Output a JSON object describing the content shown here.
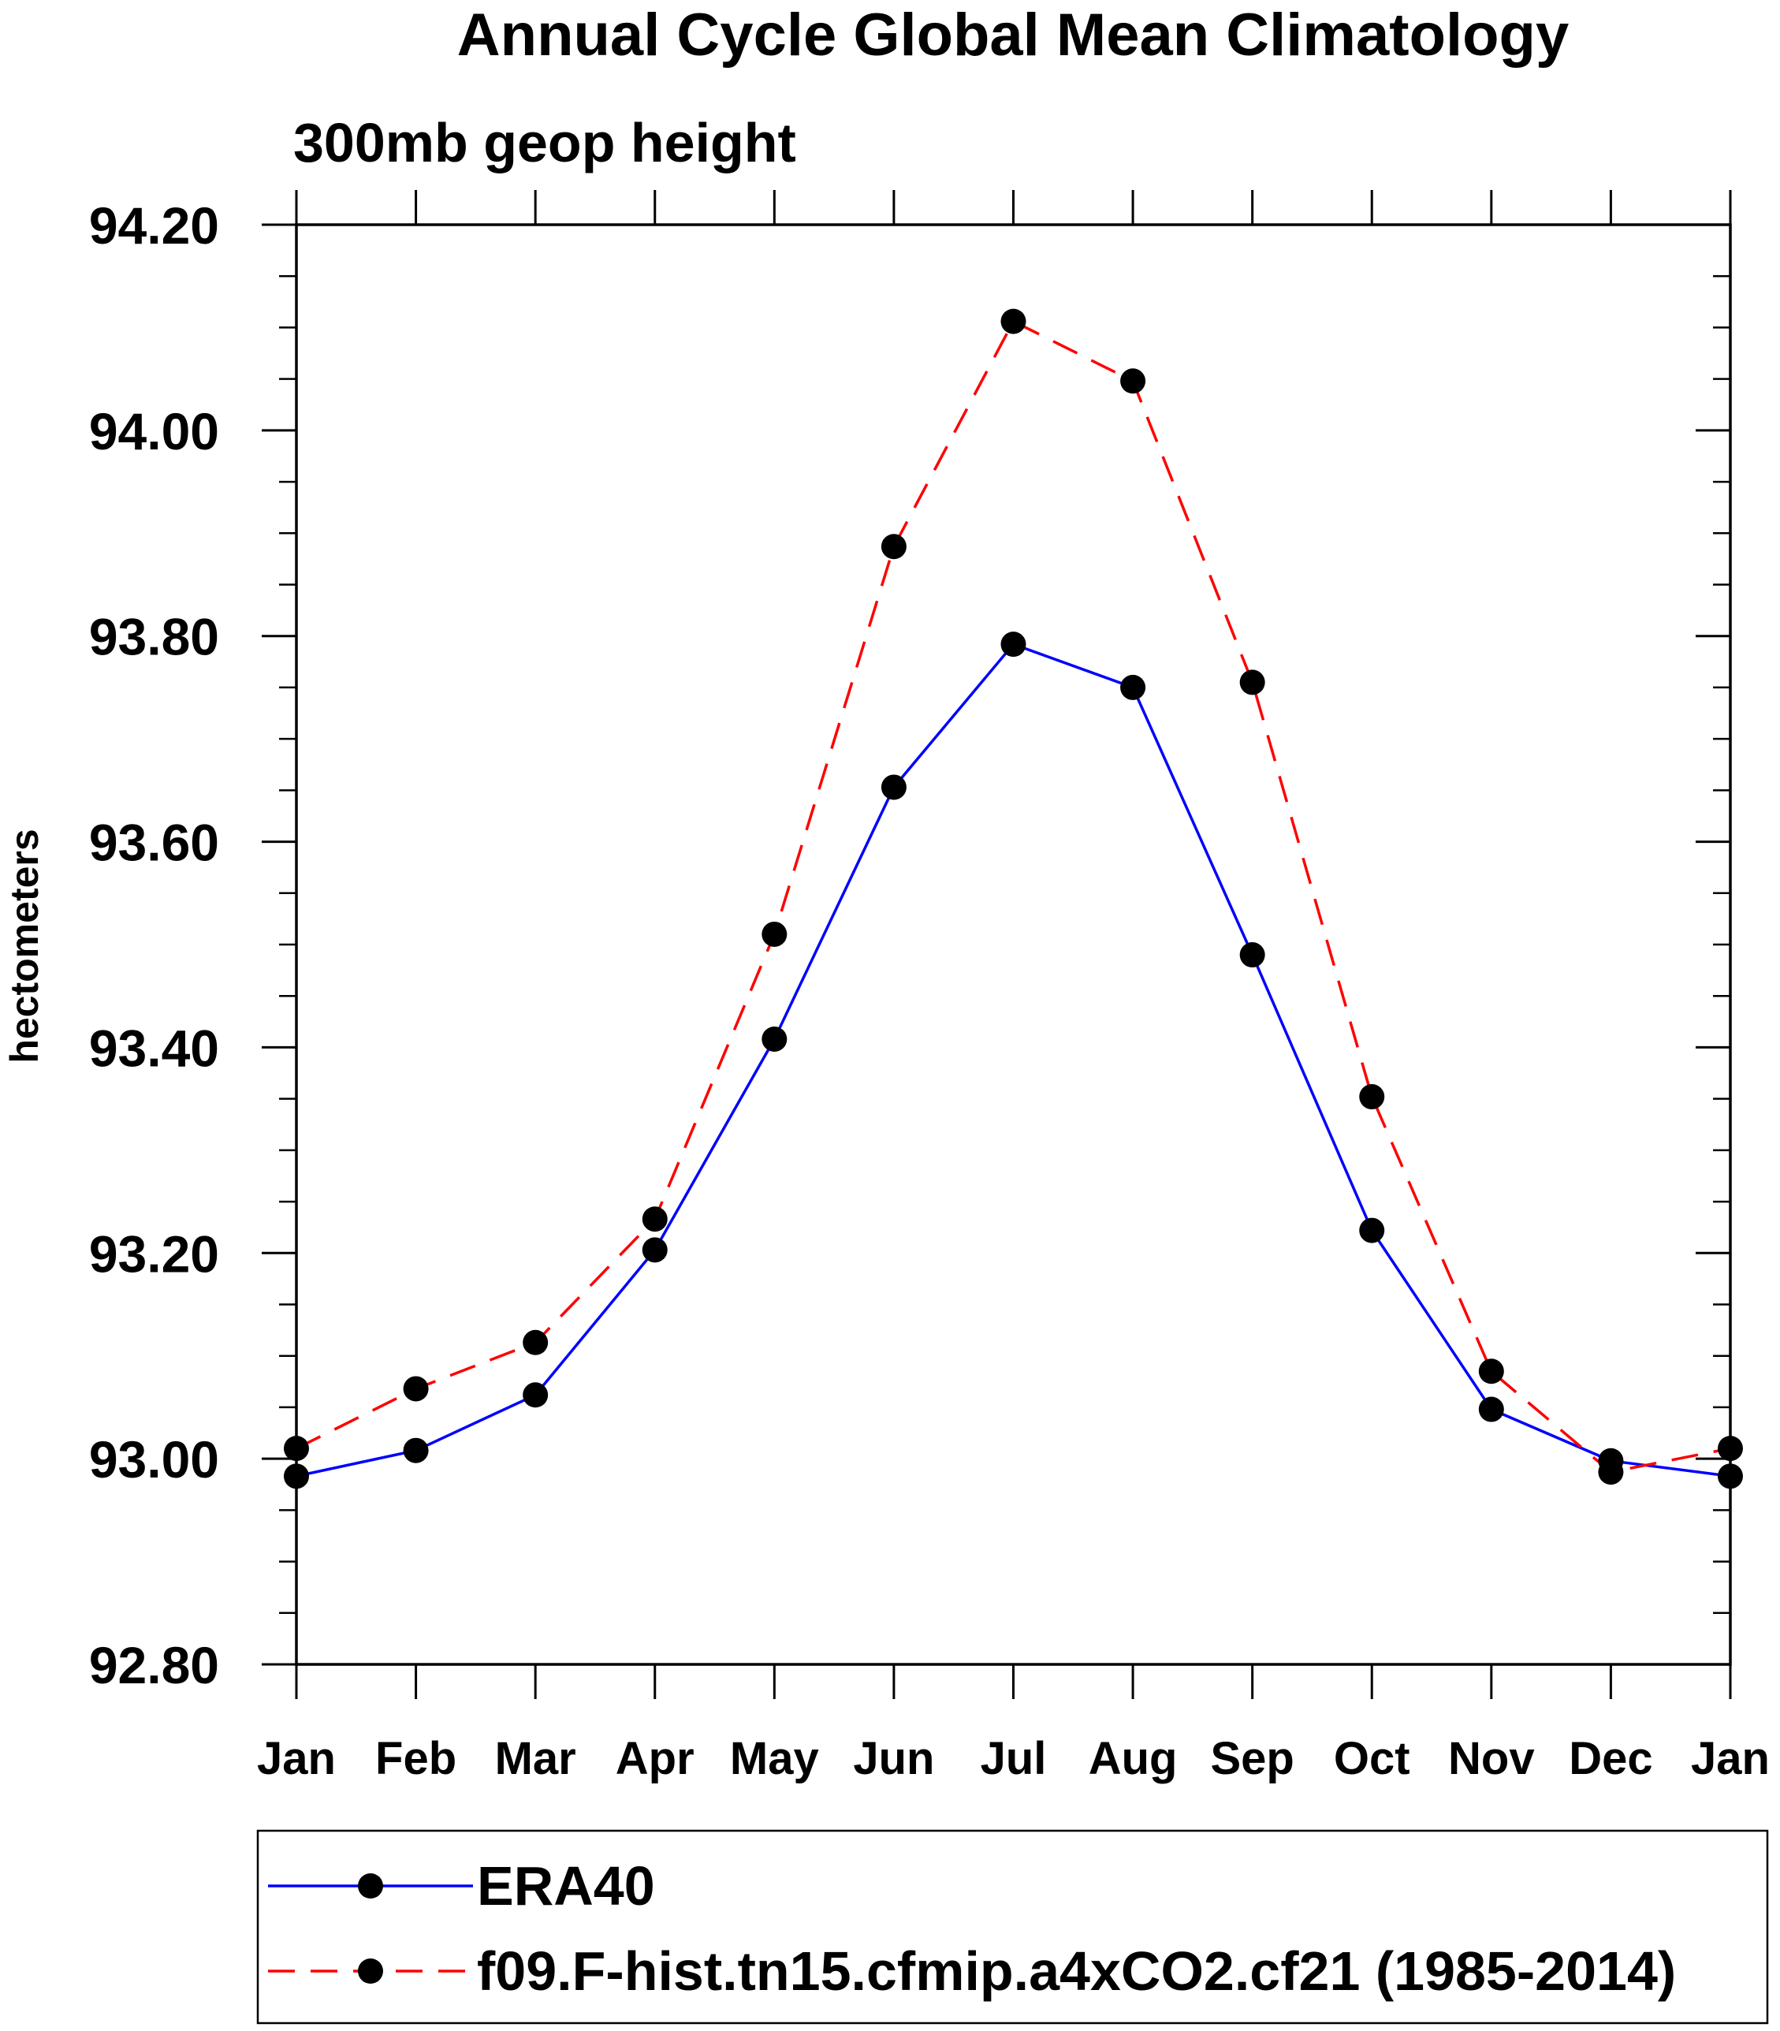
{
  "chart_data": {
    "type": "line",
    "title": "Annual Cycle Global Mean Climatology",
    "subtitle": "300mb geop height",
    "xlabel": "",
    "ylabel": "hectometers",
    "ylim": [
      92.8,
      94.2
    ],
    "y_ticks": [
      "92.80",
      "93.00",
      "93.20",
      "93.40",
      "93.60",
      "93.80",
      "94.00",
      "94.20"
    ],
    "y_minor_step": 0.05,
    "categories": [
      "Jan",
      "Feb",
      "Mar",
      "Apr",
      "May",
      "Jun",
      "Jul",
      "Aug",
      "Sep",
      "Oct",
      "Nov",
      "Dec",
      "Jan"
    ],
    "grid": false,
    "legend_position": "bottom",
    "series": [
      {
        "name": "ERA40",
        "color": "#0000ff",
        "dash": "solid",
        "marker": "filled-circle",
        "values": [
          92.983,
          93.008,
          93.062,
          93.203,
          93.408,
          93.653,
          93.792,
          93.75,
          93.49,
          93.222,
          93.048,
          92.998,
          92.983
        ]
      },
      {
        "name": "f09.F-hist.tn15.cfmip.a4xCO2.cf21 (1985-2014)",
        "color": "#ff0000",
        "dash": "dashed",
        "marker": "filled-circle",
        "values": [
          93.01,
          93.068,
          93.113,
          93.233,
          93.51,
          93.887,
          94.106,
          94.048,
          93.755,
          93.352,
          93.085,
          92.987,
          93.01
        ]
      }
    ]
  }
}
